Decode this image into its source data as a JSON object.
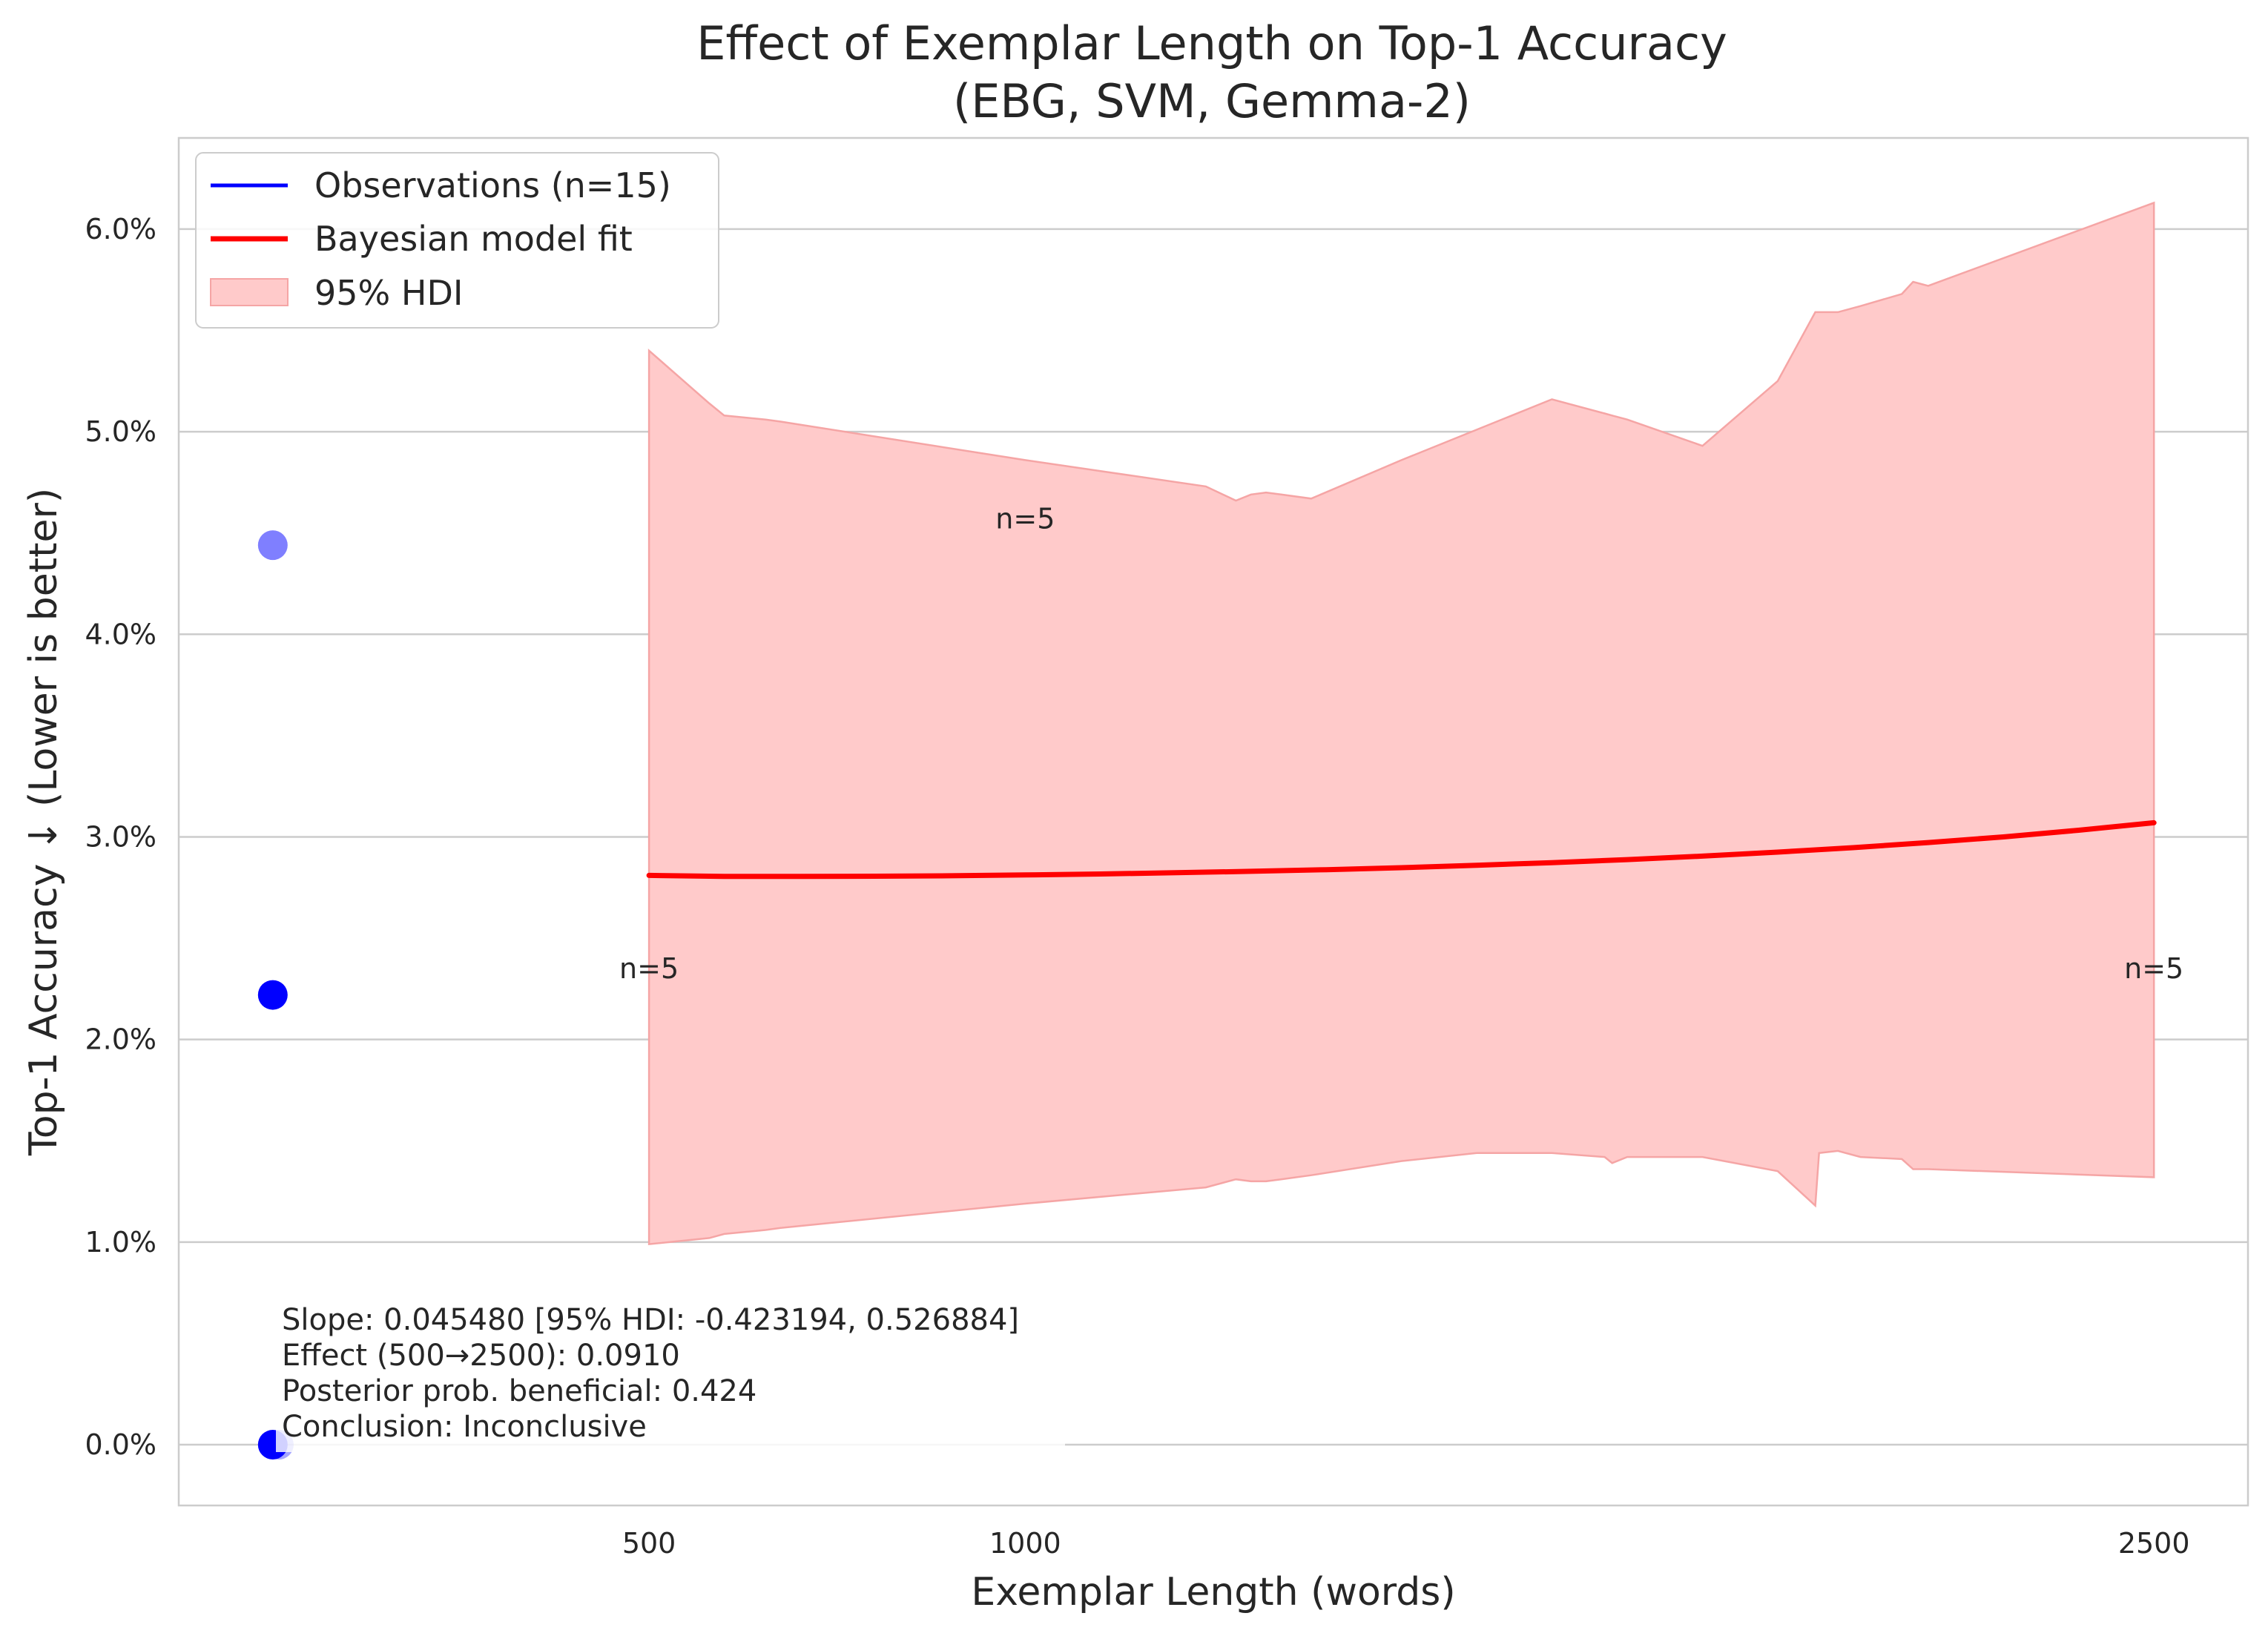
{
  "chart_data": {
    "type": "line",
    "title": "Effect of Exemplar Length on Top-1 Accuracy",
    "subtitle": "(EBG, SVM, Gemma-2)",
    "xlabel": "Exemplar Length (words)",
    "ylabel": "Top-1 Accuracy ↓ (Lower is better)",
    "xlim": [
      -125,
      2625
    ],
    "ylim": [
      -0.3,
      6.45
    ],
    "x_ticks": [
      500,
      1000,
      2500
    ],
    "x_tick_labels": [
      "500",
      "1000",
      "2500"
    ],
    "y_ticks": [
      0,
      1,
      2,
      3,
      4,
      5,
      6
    ],
    "y_tick_labels": [
      "0.0%",
      "1.0%",
      "2.0%",
      "3.0%",
      "4.0%",
      "5.0%",
      "6.0%"
    ],
    "grid": "horizontal",
    "legend_position": "top-left",
    "legend": [
      {
        "label": "Observations (n=15)",
        "kind": "line",
        "color": "#0000ff"
      },
      {
        "label": "Bayesian model fit",
        "kind": "line",
        "color": "#ff0000"
      },
      {
        "label": "95% HDI",
        "kind": "patch",
        "color": "#ffcaca"
      }
    ],
    "observations": [
      {
        "x": 0,
        "y": 4.44,
        "opacity": 0.5
      },
      {
        "x": 0,
        "y": 2.22,
        "opacity": 1.0
      },
      {
        "x": 0,
        "y": 0.0,
        "opacity": 1.0
      },
      {
        "x": 8,
        "y": 0.0,
        "opacity": 0.35
      }
    ],
    "fit": {
      "x": [
        500,
        600,
        700,
        800,
        900,
        1000,
        1100,
        1200,
        1300,
        1400,
        1500,
        1600,
        1700,
        1800,
        1900,
        2000,
        2100,
        2200,
        2300,
        2400,
        2500
      ],
      "y": [
        2.81,
        2.805,
        2.805,
        2.806,
        2.808,
        2.812,
        2.817,
        2.823,
        2.83,
        2.838,
        2.848,
        2.86,
        2.873,
        2.888,
        2.905,
        2.925,
        2.947,
        2.972,
        3.0,
        3.033,
        3.07
      ]
    },
    "hdi": {
      "x": [
        500,
        580,
        600,
        655,
        675,
        1000,
        1240,
        1280,
        1300,
        1320,
        1340,
        1380,
        1500,
        1600,
        1700,
        1770,
        1780,
        1800,
        1900,
        2000,
        2050,
        2055,
        2080,
        2110,
        2165,
        2180,
        2200,
        2500
      ],
      "upper": [
        5.4,
        5.14,
        5.08,
        5.06,
        5.05,
        4.86,
        4.73,
        4.66,
        4.69,
        4.7,
        4.69,
        4.67,
        4.86,
        5.01,
        5.16,
        5.09,
        5.08,
        5.06,
        4.93,
        5.25,
        5.59,
        5.59,
        5.59,
        5.62,
        5.68,
        5.74,
        5.72,
        6.13
      ],
      "lower": [
        0.99,
        1.02,
        1.04,
        1.06,
        1.07,
        1.19,
        1.27,
        1.31,
        1.3,
        1.3,
        1.31,
        1.33,
        1.4,
        1.44,
        1.44,
        1.42,
        1.39,
        1.42,
        1.42,
        1.35,
        1.18,
        1.44,
        1.45,
        1.42,
        1.41,
        1.36,
        1.36,
        1.32
      ]
    },
    "annotations": [
      {
        "text": "n=5",
        "x": 500,
        "y": 2.35
      },
      {
        "text": "n=5",
        "x": 1000,
        "y": 4.57
      },
      {
        "text": "n=5",
        "x": 2500,
        "y": 2.35
      }
    ],
    "stats_box": [
      "Slope: 0.045480 [95% HDI: -0.423194, 0.526884]",
      "Effect (500→2500): 0.0910",
      "Posterior prob. beneficial: 0.424",
      "Conclusion: Inconclusive"
    ],
    "colors": {
      "observation": "#0000ff",
      "fit": "#ff0000",
      "hdi_fill": "#ffcaca",
      "hdi_edge": "#f5a5a5",
      "grid": "#cccccc",
      "frame": "#cccccc"
    }
  }
}
